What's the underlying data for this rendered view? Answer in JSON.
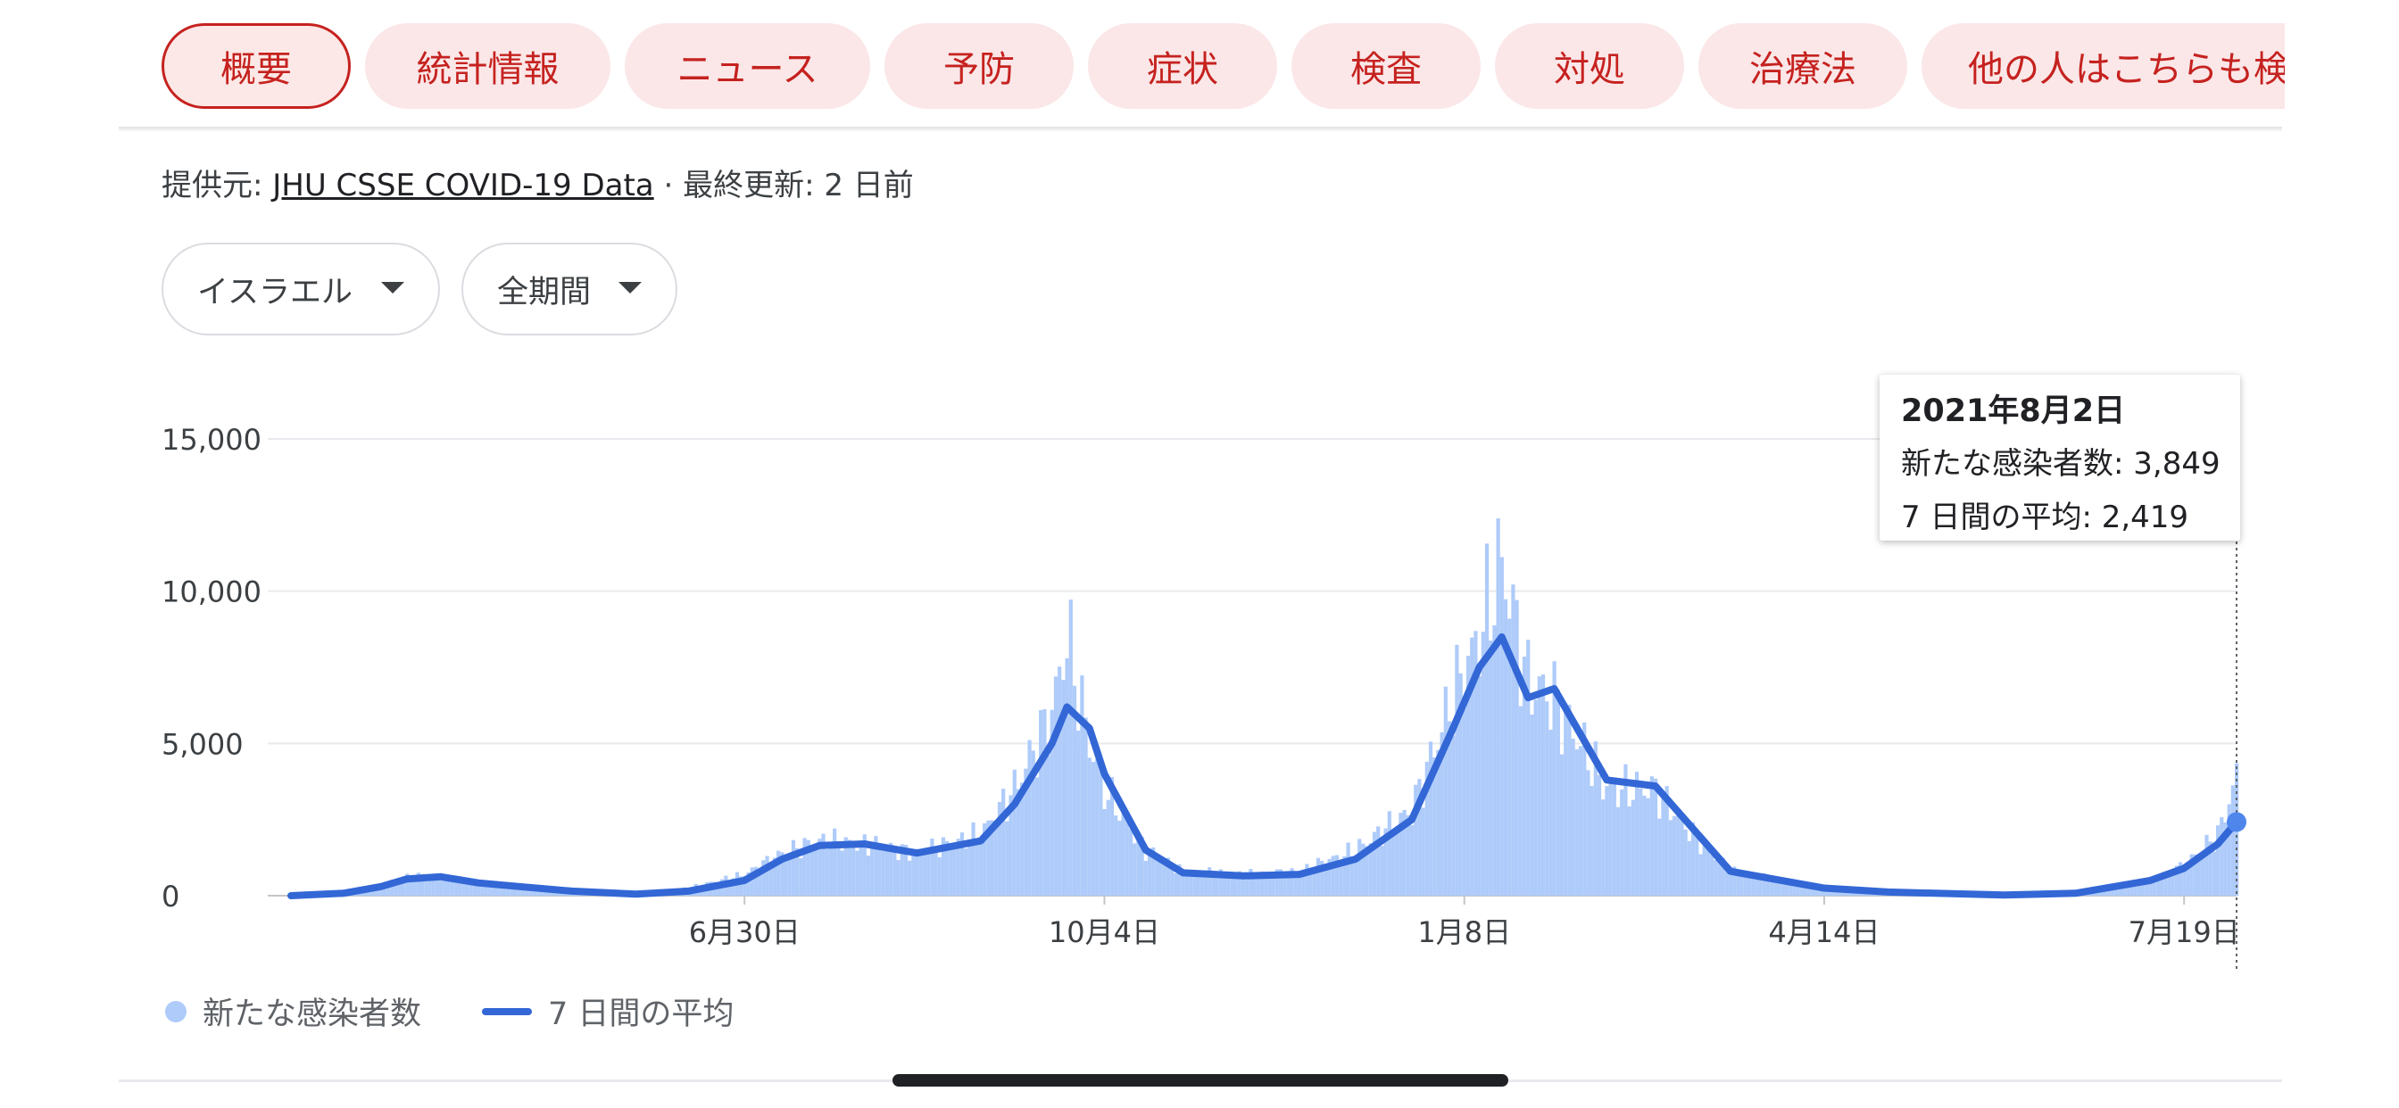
{
  "tabs": [
    {
      "label": "概要",
      "active": true
    },
    {
      "label": "統計情報",
      "active": false
    },
    {
      "label": "ニュース",
      "active": false
    },
    {
      "label": "予防",
      "active": false
    },
    {
      "label": "症状",
      "active": false
    },
    {
      "label": "検査",
      "active": false
    },
    {
      "label": "対処",
      "active": false
    },
    {
      "label": "治療法",
      "active": false
    },
    {
      "label": "他の人はこちらも検",
      "active": false
    }
  ],
  "source": {
    "prefix": "提供元: ",
    "link": "JHU CSSE COVID-19 Data",
    "suffix": " · 最終更新: 2 日前"
  },
  "filters": {
    "region": "イスラエル",
    "period": "全期間"
  },
  "tooltip": {
    "date": "2021年8月2日",
    "new_cases_label": "新たな感染者数",
    "new_cases": "3,849",
    "avg_label": "7 日間の平均",
    "avg": "2,419"
  },
  "legend": {
    "bars": "新たな感染者数",
    "line": "7 日間の平均"
  },
  "colors": {
    "tab_text": "#c5221f",
    "tab_bg": "#fbe7e8",
    "bar": "#aecbfa",
    "line": "#3367d6"
  },
  "chart_data": {
    "type": "bar",
    "title": "",
    "xlabel": "",
    "ylabel": "",
    "ylim": [
      0,
      15000
    ],
    "y_ticks": [
      0,
      5000,
      10000,
      15000
    ],
    "y_tick_labels": [
      "0",
      "5,000",
      "10,000",
      "15,000"
    ],
    "x_tick_labels": [
      "6月30日",
      "10月4日",
      "1月8日",
      "4月14日",
      "7月19日"
    ],
    "x_range": [
      "2020-03-01",
      "2021-08-02"
    ],
    "grid": true,
    "legend_position": "bottom-left",
    "series": [
      {
        "name": "新たな感染者数",
        "type": "bar",
        "points": [
          [
            "2020-03-01",
            0
          ],
          [
            "2020-03-15",
            100
          ],
          [
            "2020-03-25",
            300
          ],
          [
            "2020-04-01",
            650
          ],
          [
            "2020-04-10",
            550
          ],
          [
            "2020-04-20",
            450
          ],
          [
            "2020-05-01",
            250
          ],
          [
            "2020-05-15",
            40
          ],
          [
            "2020-06-01",
            100
          ],
          [
            "2020-06-15",
            250
          ],
          [
            "2020-06-30",
            700
          ],
          [
            "2020-07-10",
            1400
          ],
          [
            "2020-07-20",
            1800
          ],
          [
            "2020-08-01",
            1700
          ],
          [
            "2020-08-15",
            1400
          ],
          [
            "2020-09-01",
            2000
          ],
          [
            "2020-09-10",
            3500
          ],
          [
            "2020-09-20",
            6000
          ],
          [
            "2020-09-24",
            8500
          ],
          [
            "2020-09-30",
            5000
          ],
          [
            "2020-10-04",
            3500
          ],
          [
            "2020-10-15",
            1500
          ],
          [
            "2020-10-25",
            800
          ],
          [
            "2020-11-10",
            700
          ],
          [
            "2020-11-25",
            800
          ],
          [
            "2020-12-10",
            1500
          ],
          [
            "2020-12-25",
            2800
          ],
          [
            "2021-01-05",
            6500
          ],
          [
            "2021-01-12",
            8500
          ],
          [
            "2021-01-18",
            11000
          ],
          [
            "2021-01-25",
            7000
          ],
          [
            "2021-02-01",
            6500
          ],
          [
            "2021-02-15",
            3500
          ],
          [
            "2021-02-28",
            3500
          ],
          [
            "2021-03-10",
            2000
          ],
          [
            "2021-03-20",
            800
          ],
          [
            "2021-04-14",
            250
          ],
          [
            "2021-05-01",
            100
          ],
          [
            "2021-06-01",
            20
          ],
          [
            "2021-06-20",
            100
          ],
          [
            "2021-07-10",
            500
          ],
          [
            "2021-07-19",
            1000
          ],
          [
            "2021-07-28",
            2000
          ],
          [
            "2021-08-02",
            3849
          ]
        ]
      },
      {
        "name": "7 日間の平均",
        "type": "line",
        "points": [
          [
            "2020-03-01",
            0
          ],
          [
            "2020-03-15",
            80
          ],
          [
            "2020-03-25",
            300
          ],
          [
            "2020-04-01",
            550
          ],
          [
            "2020-04-10",
            620
          ],
          [
            "2020-04-20",
            420
          ],
          [
            "2020-05-01",
            300
          ],
          [
            "2020-05-15",
            150
          ],
          [
            "2020-06-01",
            50
          ],
          [
            "2020-06-15",
            150
          ],
          [
            "2020-06-30",
            500
          ],
          [
            "2020-07-10",
            1200
          ],
          [
            "2020-07-20",
            1650
          ],
          [
            "2020-08-01",
            1700
          ],
          [
            "2020-08-15",
            1400
          ],
          [
            "2020-09-01",
            1800
          ],
          [
            "2020-09-10",
            3000
          ],
          [
            "2020-09-20",
            5000
          ],
          [
            "2020-09-24",
            6200
          ],
          [
            "2020-09-30",
            5500
          ],
          [
            "2020-10-04",
            4000
          ],
          [
            "2020-10-15",
            1500
          ],
          [
            "2020-10-25",
            750
          ],
          [
            "2020-11-10",
            650
          ],
          [
            "2020-11-25",
            700
          ],
          [
            "2020-12-10",
            1200
          ],
          [
            "2020-12-25",
            2500
          ],
          [
            "2021-01-05",
            5500
          ],
          [
            "2021-01-12",
            7500
          ],
          [
            "2021-01-18",
            8500
          ],
          [
            "2021-01-25",
            6500
          ],
          [
            "2021-02-01",
            6800
          ],
          [
            "2021-02-15",
            3800
          ],
          [
            "2021-02-28",
            3600
          ],
          [
            "2021-03-10",
            2200
          ],
          [
            "2021-03-20",
            800
          ],
          [
            "2021-04-14",
            250
          ],
          [
            "2021-05-01",
            120
          ],
          [
            "2021-06-01",
            20
          ],
          [
            "2021-06-20",
            80
          ],
          [
            "2021-07-10",
            500
          ],
          [
            "2021-07-19",
            900
          ],
          [
            "2021-07-28",
            1700
          ],
          [
            "2021-08-02",
            2419
          ]
        ]
      }
    ]
  }
}
